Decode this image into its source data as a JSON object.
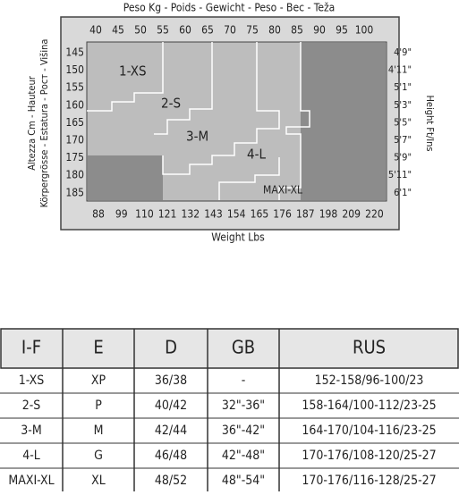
{
  "header": {
    "title": "Peso Kg - Poids - Gewicht - Peso - Bec - Teža"
  },
  "chart": {
    "kg": [
      "40",
      "45",
      "50",
      "55",
      "60",
      "65",
      "70",
      "75",
      "80",
      "85",
      "90",
      "95",
      "100"
    ],
    "cm": [
      "145",
      "150",
      "155",
      "160",
      "165",
      "170",
      "175",
      "180",
      "185"
    ],
    "ftin": [
      "4'9\"",
      "4'11\"",
      "5'1\"",
      "5'3\"",
      "5'5\"",
      "5'7\"",
      "5'9\"",
      "5'11\"",
      "6'1\""
    ],
    "lbs": [
      "88",
      "99",
      "110",
      "121",
      "132",
      "143",
      "154",
      "165",
      "176",
      "187",
      "198",
      "209",
      "220"
    ],
    "x_label": "Weight Lbs",
    "left_label": [
      "Altezza Cm - Hauteur",
      "Körpergrösse - Estatura - Рост - Višina"
    ],
    "right_label": "Height Ft/Ins",
    "regions": [
      "1-XS",
      "2-S",
      "3-M",
      "4-L",
      "MAXI-XL"
    ]
  },
  "table": {
    "header": [
      "I-F",
      "E",
      "D",
      "GB",
      "RUS"
    ],
    "rows": [
      [
        "1-XS",
        "XP",
        "36/38",
        "-",
        "152-158/96-100/23"
      ],
      [
        "2-S",
        "P",
        "40/42",
        "32\"-36\"",
        "158-164/100-112/23-25"
      ],
      [
        "3-M",
        "M",
        "42/44",
        "36\"-42\"",
        "164-170/104-116/23-25"
      ],
      [
        "4-L",
        "G",
        "46/48",
        "42\"-48\"",
        "170-176/108-120/25-27"
      ],
      [
        "MAXI-XL",
        "XL",
        "48/52",
        "48\"-54\"",
        "170-176/116-128/25-27"
      ]
    ]
  }
}
